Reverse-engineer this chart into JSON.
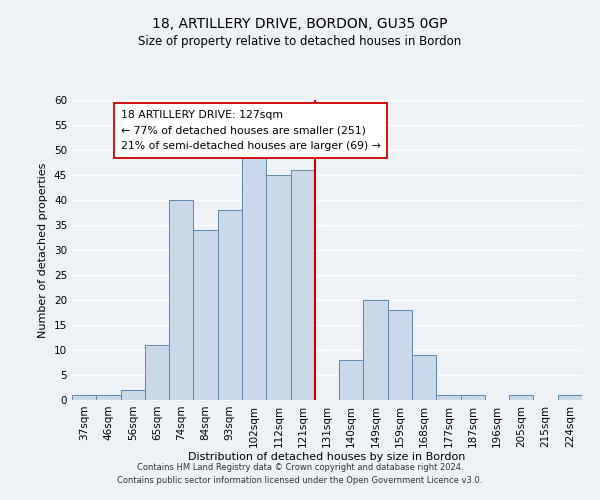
{
  "title": "18, ARTILLERY DRIVE, BORDON, GU35 0GP",
  "subtitle": "Size of property relative to detached houses in Bordon",
  "xlabel": "Distribution of detached houses by size in Bordon",
  "ylabel": "Number of detached properties",
  "bin_labels": [
    "37sqm",
    "46sqm",
    "56sqm",
    "65sqm",
    "74sqm",
    "84sqm",
    "93sqm",
    "102sqm",
    "112sqm",
    "121sqm",
    "131sqm",
    "140sqm",
    "149sqm",
    "159sqm",
    "168sqm",
    "177sqm",
    "187sqm",
    "196sqm",
    "205sqm",
    "215sqm",
    "224sqm"
  ],
  "bar_heights": [
    1,
    1,
    2,
    11,
    40,
    34,
    38,
    49,
    45,
    46,
    0,
    8,
    20,
    18,
    9,
    1,
    1,
    0,
    1,
    0,
    1
  ],
  "bar_color": "#c8d8e8",
  "bar_edge_color": "#5a8ab0",
  "vline_x": 9.5,
  "vline_color": "#cc0000",
  "annotation_title": "18 ARTILLERY DRIVE: 127sqm",
  "annotation_line1": "← 77% of detached houses are smaller (251)",
  "annotation_line2": "21% of semi-detached houses are larger (69) →",
  "annotation_box_color": "#ffffff",
  "annotation_box_edge": "#cc0000",
  "ylim": [
    0,
    60
  ],
  "yticks": [
    0,
    5,
    10,
    15,
    20,
    25,
    30,
    35,
    40,
    45,
    50,
    55,
    60
  ],
  "footer_line1": "Contains HM Land Registry data © Crown copyright and database right 2024.",
  "footer_line2": "Contains public sector information licensed under the Open Government Licence v3.0.",
  "bg_color": "#eef2f7",
  "grid_color": "#ffffff"
}
